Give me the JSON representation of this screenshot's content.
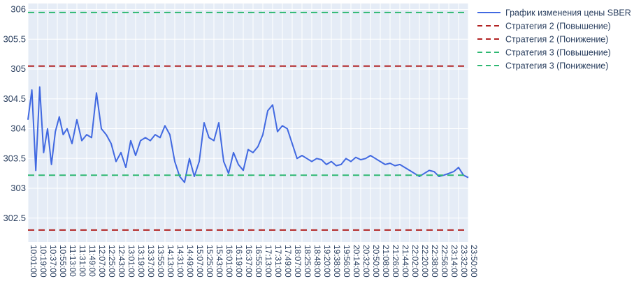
{
  "chart_data": {
    "type": "line",
    "title": "",
    "xlabel": "",
    "ylabel": "",
    "ylim": [
      302.1,
      306.1
    ],
    "yticks": [
      "302.5",
      "303",
      "303.5",
      "304",
      "304.5",
      "305",
      "305.5",
      "306"
    ],
    "xticks": [
      "10:01:00",
      "10:19:00",
      "10:37:00",
      "10:55:00",
      "11:13:00",
      "11:31:00",
      "11:49:00",
      "12:07:00",
      "12:25:00",
      "12:43:00",
      "13:01:00",
      "13:19:00",
      "13:37:00",
      "13:55:00",
      "14:13:00",
      "14:31:00",
      "14:49:00",
      "15:07:00",
      "15:25:00",
      "15:43:00",
      "16:01:00",
      "16:19:00",
      "16:37:00",
      "16:55:00",
      "17:13:00",
      "17:31:00",
      "17:49:00",
      "18:07:00",
      "18:25:00",
      "18:48:00",
      "19:20:00",
      "19:38:00",
      "19:56:00",
      "20:14:00",
      "20:32:00",
      "20:50:00",
      "21:08:00",
      "21:26:00",
      "21:44:00",
      "22:02:00",
      "22:20:00",
      "22:38:00",
      "22:56:00",
      "23:14:00",
      "23:32:00",
      "23:50:00"
    ],
    "grid": true,
    "legend_position": "top-right-outside",
    "series": [
      {
        "name": "График изменения цены SBER",
        "color": "#4169e1",
        "style": "solid",
        "x": [
          0,
          0.4,
          0.8,
          1.2,
          1.6,
          2,
          2.4,
          2.8,
          3.2,
          3.6,
          4,
          4.5,
          5,
          5.5,
          6,
          6.5,
          7,
          7.5,
          8,
          8.5,
          9,
          9.5,
          10,
          10.5,
          11,
          11.5,
          12,
          12.5,
          13,
          13.5,
          14,
          14.5,
          15,
          15.5,
          16,
          16.5,
          17,
          17.5,
          18,
          18.5,
          19,
          19.5,
          20,
          20.5,
          21,
          21.5,
          22,
          22.5,
          23,
          23.5,
          24,
          24.5,
          25,
          25.5,
          26,
          26.5,
          27,
          27.5,
          28,
          28.5,
          29,
          29.5,
          30,
          30.5,
          31,
          31.5,
          32,
          32.5,
          33,
          33.5,
          34,
          34.5,
          35,
          35.5,
          36,
          36.5,
          37,
          37.5,
          38,
          38.5,
          39,
          39.5,
          40,
          40.5,
          41,
          41.5,
          42,
          42.5,
          43,
          43.5,
          44,
          44.5,
          45
        ],
        "y": [
          304.15,
          304.65,
          303.3,
          304.7,
          303.6,
          304.0,
          303.4,
          303.95,
          304.2,
          303.9,
          304.0,
          303.75,
          304.15,
          303.8,
          303.9,
          303.85,
          304.6,
          304.0,
          303.9,
          303.75,
          303.45,
          303.6,
          303.35,
          303.8,
          303.55,
          303.8,
          303.85,
          303.8,
          303.9,
          303.85,
          304.05,
          303.9,
          303.45,
          303.2,
          303.1,
          303.5,
          303.2,
          303.45,
          304.1,
          303.85,
          303.8,
          304.1,
          303.45,
          303.25,
          303.6,
          303.4,
          303.3,
          303.65,
          303.6,
          303.7,
          303.9,
          304.3,
          304.4,
          303.95,
          304.05,
          304.0,
          303.75,
          303.5,
          303.55,
          303.5,
          303.45,
          303.5,
          303.48,
          303.4,
          303.45,
          303.38,
          303.4,
          303.5,
          303.45,
          303.52,
          303.48,
          303.5,
          303.55,
          303.5,
          303.45,
          303.4,
          303.42,
          303.38,
          303.4,
          303.35,
          303.3,
          303.25,
          303.2,
          303.25,
          303.3,
          303.28,
          303.2,
          303.22,
          303.25,
          303.28,
          303.35,
          303.22,
          303.18
        ]
      },
      {
        "name": "Стратегия 2 (Повышение)",
        "color": "#b22222",
        "style": "dash",
        "y_const": 305.05
      },
      {
        "name": "Стратегия 2 (Понижение)",
        "color": "#b22222",
        "style": "dash",
        "y_const": 302.3
      },
      {
        "name": "Стратегия 3 (Повышение)",
        "color": "#2eb872",
        "style": "dash",
        "y_const": 305.95
      },
      {
        "name": "Стратегия 3 (Понижение)",
        "color": "#2eb872",
        "style": "dash",
        "y_const": 303.22
      }
    ]
  }
}
